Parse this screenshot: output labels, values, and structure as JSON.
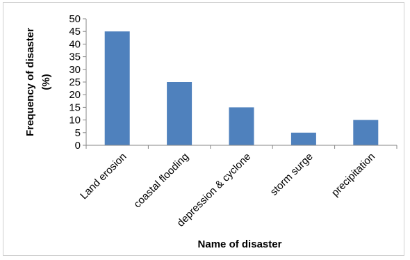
{
  "chart_data": {
    "type": "bar",
    "categories": [
      "Land erosion",
      "coastal flooding",
      "depression & cyclone",
      "storm surge",
      "precipitation"
    ],
    "values": [
      45,
      25,
      15,
      5,
      10
    ],
    "title": "",
    "xlabel": "Name of disaster",
    "ylabel_lines": [
      "Frequency of disaster",
      "(%)"
    ],
    "ylim": [
      0,
      50
    ],
    "yticks": [
      0,
      5,
      10,
      15,
      20,
      25,
      30,
      35,
      40,
      45,
      50
    ],
    "bar_color": "#4f81bd",
    "grid": false,
    "legend": "none"
  }
}
